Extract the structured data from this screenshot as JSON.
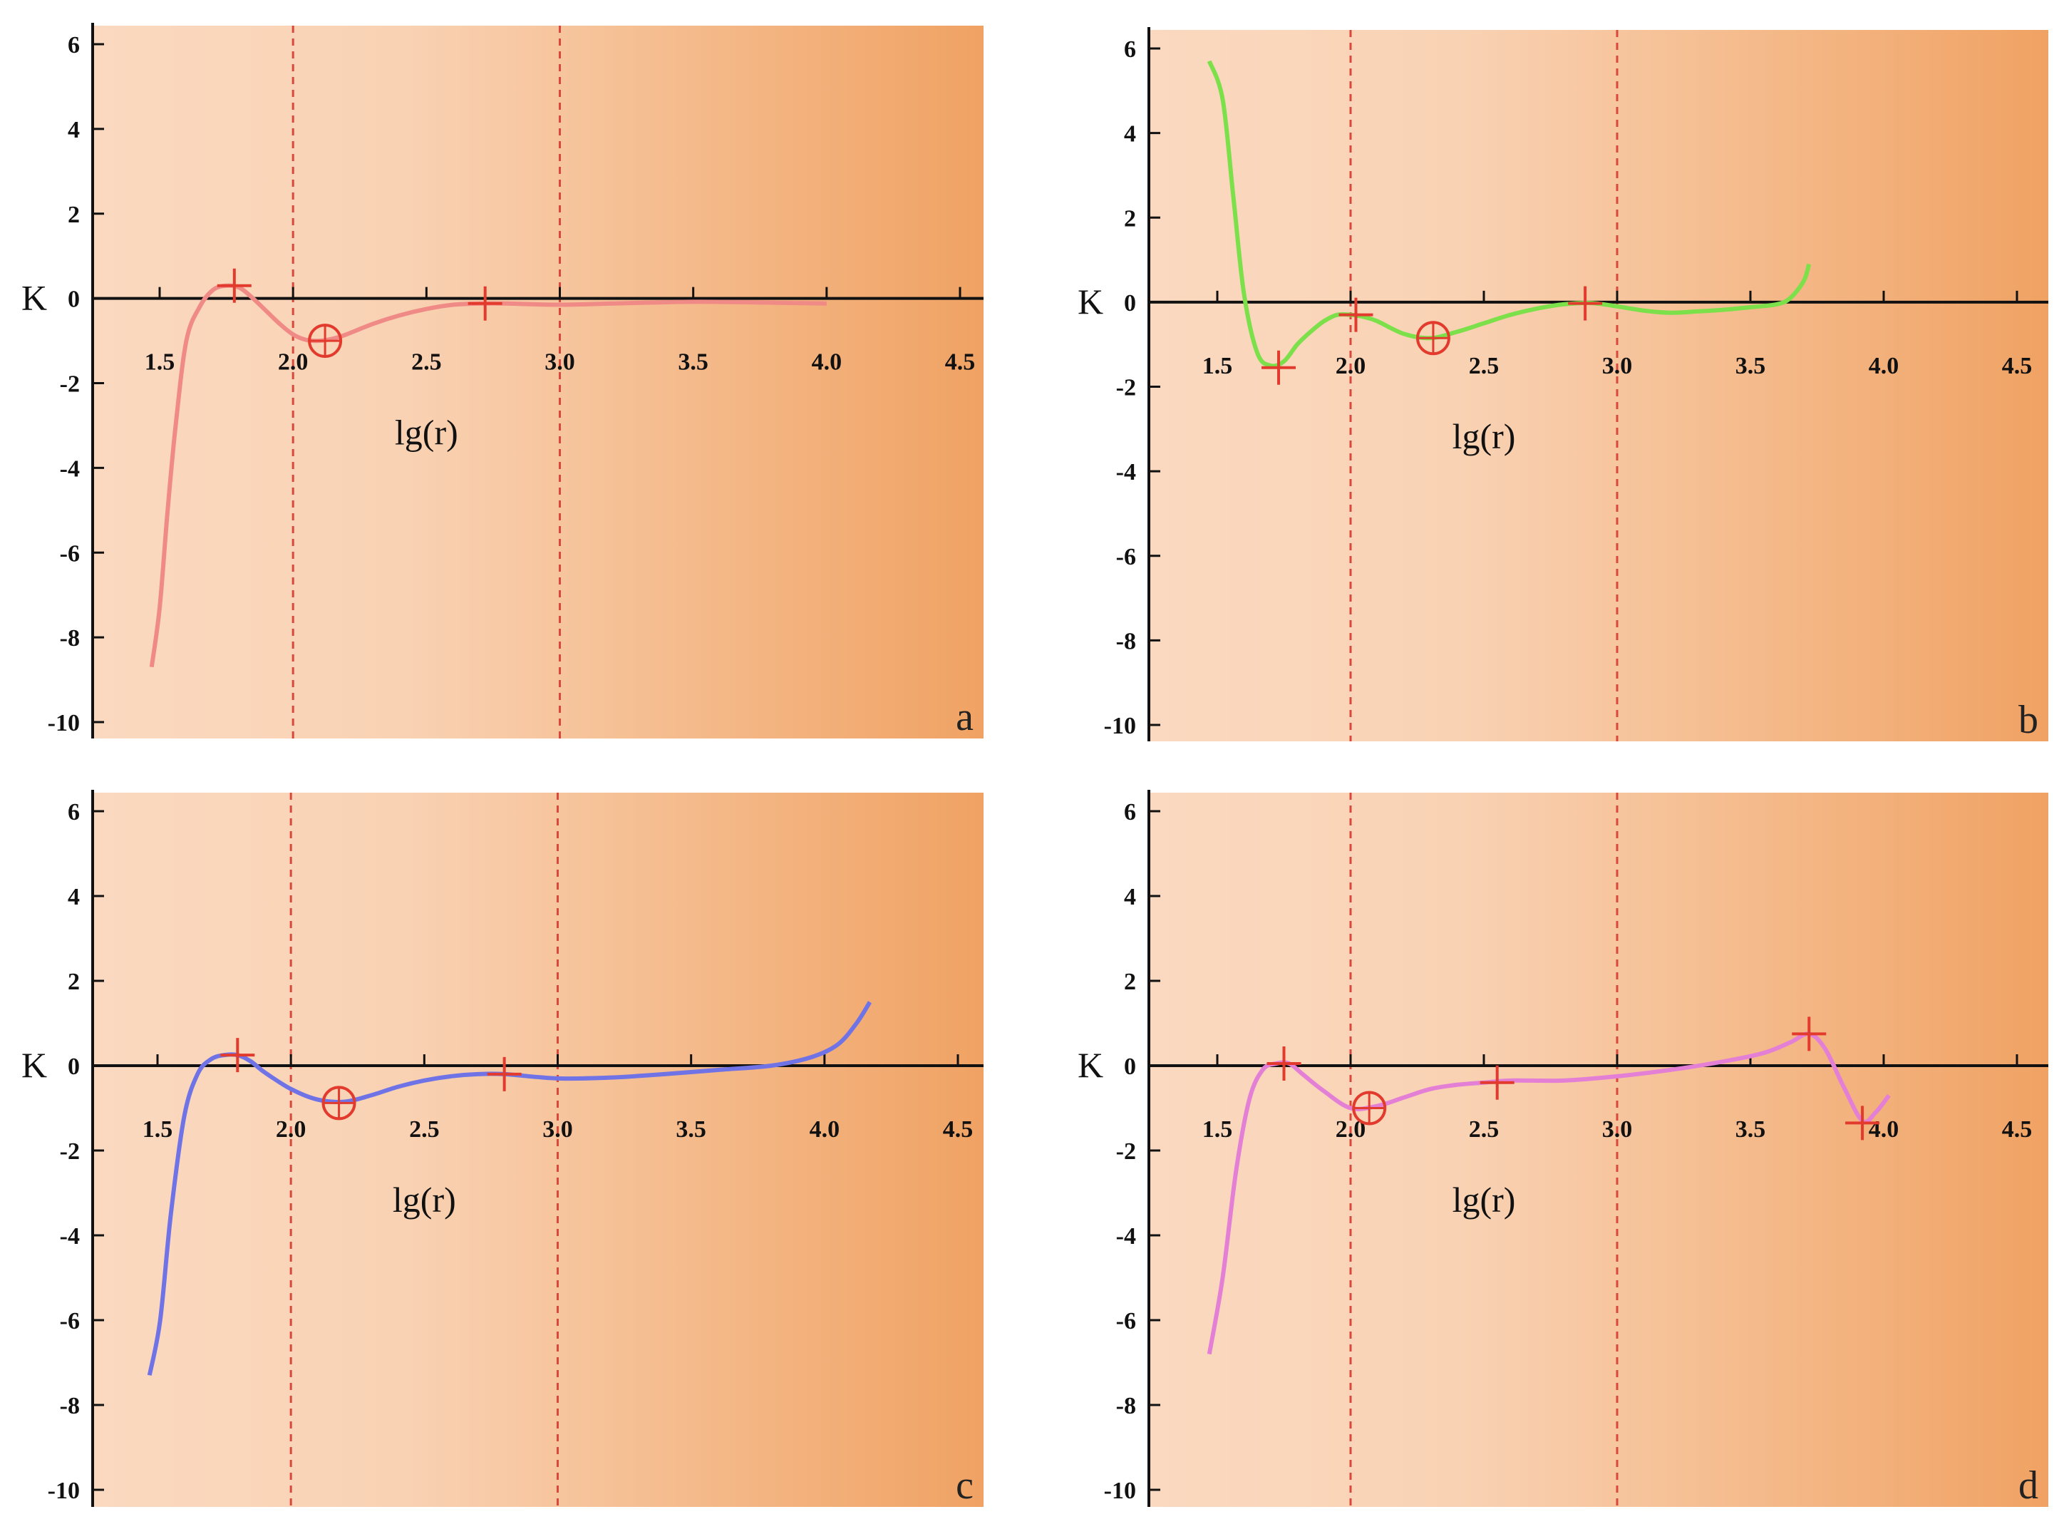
{
  "chart_data": [
    {
      "type": "line",
      "panel": "a",
      "xlabel": "lg(r)",
      "ylabel": "K",
      "xlim": [
        1.25,
        4.6
      ],
      "ylim": [
        -10.5,
        6.5
      ],
      "x_ticks": [
        "1.5",
        "2.0",
        "2.5",
        "3.0",
        "3.5",
        "4.0",
        "4.5"
      ],
      "y_ticks": [
        "6",
        "4",
        "2",
        "0",
        "-2",
        "-4",
        "-6",
        "-8",
        "-10"
      ],
      "y_tick_values": [
        6,
        4,
        2,
        0,
        -2,
        -4,
        -6,
        -8,
        -10
      ],
      "x_tick_values": [
        1.5,
        2.0,
        2.5,
        3.0,
        3.5,
        4.0,
        4.5
      ],
      "vlines": [
        2.0,
        3.0
      ],
      "line_color": "#f08a86",
      "series": {
        "x": [
          1.47,
          1.5,
          1.53,
          1.56,
          1.6,
          1.65,
          1.7,
          1.75,
          1.8,
          1.85,
          1.9,
          1.95,
          2.0,
          2.05,
          2.1,
          2.15,
          2.2,
          2.3,
          2.4,
          2.5,
          2.6,
          2.7,
          2.8,
          3.0,
          3.2,
          3.5,
          3.8,
          4.0
        ],
        "y": [
          -8.7,
          -7.3,
          -5.0,
          -3.0,
          -1.0,
          -0.2,
          0.2,
          0.3,
          0.25,
          0.0,
          -0.3,
          -0.6,
          -0.85,
          -0.98,
          -1.0,
          -0.95,
          -0.85,
          -0.6,
          -0.4,
          -0.25,
          -0.15,
          -0.12,
          -0.12,
          -0.15,
          -0.12,
          -0.08,
          -0.1,
          -0.12
        ]
      },
      "plus_markers": [
        [
          1.78,
          0.3
        ],
        [
          2.72,
          -0.12
        ]
      ],
      "circle_markers": [
        [
          2.12,
          -1.0
        ]
      ],
      "panel_letter": "a"
    },
    {
      "type": "line",
      "panel": "b",
      "xlabel": "lg(r)",
      "ylabel": "K",
      "xlim": [
        1.25,
        4.6
      ],
      "ylim": [
        -10.5,
        6.5
      ],
      "x_ticks": [
        "1.5",
        "2.0",
        "2.5",
        "3.0",
        "3.5",
        "4.0",
        "4.5"
      ],
      "y_ticks": [
        "6",
        "4",
        "2",
        "0",
        "-2",
        "-4",
        "-6",
        "-8",
        "-10"
      ],
      "y_tick_values": [
        6,
        4,
        2,
        0,
        -2,
        -4,
        -6,
        -8,
        -10
      ],
      "x_tick_values": [
        1.5,
        2.0,
        2.5,
        3.0,
        3.5,
        4.0,
        4.5
      ],
      "vlines": [
        2.0,
        3.0
      ],
      "line_color": "#7be04a",
      "series": {
        "x": [
          1.47,
          1.52,
          1.56,
          1.6,
          1.65,
          1.7,
          1.75,
          1.8,
          1.85,
          1.9,
          1.95,
          2.0,
          2.05,
          2.1,
          2.2,
          2.3,
          2.4,
          2.5,
          2.6,
          2.7,
          2.8,
          2.9,
          3.0,
          3.1,
          3.2,
          3.3,
          3.4,
          3.5,
          3.6,
          3.65,
          3.7,
          3.72
        ],
        "y": [
          5.7,
          4.8,
          2.5,
          0.2,
          -1.2,
          -1.5,
          -1.4,
          -1.0,
          -0.7,
          -0.45,
          -0.3,
          -0.3,
          -0.35,
          -0.45,
          -0.75,
          -0.85,
          -0.7,
          -0.5,
          -0.3,
          -0.15,
          -0.05,
          -0.02,
          -0.1,
          -0.2,
          -0.25,
          -0.22,
          -0.18,
          -0.12,
          -0.05,
          0.1,
          0.5,
          0.9
        ]
      },
      "plus_markers": [
        [
          1.73,
          -1.55
        ],
        [
          2.02,
          -0.3
        ],
        [
          2.88,
          -0.03
        ]
      ],
      "circle_markers": [
        [
          2.31,
          -0.85
        ]
      ],
      "panel_letter": "b"
    },
    {
      "type": "line",
      "panel": "c",
      "xlabel": "lg(r)",
      "ylabel": "K",
      "xlim": [
        1.25,
        4.6
      ],
      "ylim": [
        -10.5,
        6.5
      ],
      "x_ticks": [
        "1.5",
        "2.0",
        "2.5",
        "3.0",
        "3.5",
        "4.0",
        "4.5"
      ],
      "y_ticks": [
        "6",
        "4",
        "2",
        "0",
        "-2",
        "-4",
        "-6",
        "-8",
        "-10"
      ],
      "y_tick_values": [
        6,
        4,
        2,
        0,
        -2,
        -4,
        -6,
        -8,
        -10
      ],
      "x_tick_values": [
        1.5,
        2.0,
        2.5,
        3.0,
        3.5,
        4.0,
        4.5
      ],
      "vlines": [
        2.0,
        3.0
      ],
      "line_color": "#6f73e6",
      "series": {
        "x": [
          1.47,
          1.51,
          1.55,
          1.6,
          1.65,
          1.7,
          1.75,
          1.8,
          1.85,
          1.9,
          2.0,
          2.1,
          2.2,
          2.3,
          2.4,
          2.5,
          2.6,
          2.7,
          2.8,
          3.0,
          3.2,
          3.4,
          3.6,
          3.8,
          3.95,
          4.05,
          4.12,
          4.17
        ],
        "y": [
          -7.3,
          -6.0,
          -3.5,
          -1.2,
          -0.2,
          0.15,
          0.25,
          0.25,
          0.1,
          -0.15,
          -0.55,
          -0.8,
          -0.85,
          -0.7,
          -0.5,
          -0.35,
          -0.25,
          -0.2,
          -0.2,
          -0.3,
          -0.28,
          -0.2,
          -0.1,
          0.0,
          0.2,
          0.5,
          1.0,
          1.5
        ]
      },
      "plus_markers": [
        [
          1.8,
          0.25
        ],
        [
          2.8,
          -0.2
        ]
      ],
      "circle_markers": [
        [
          2.18,
          -0.88
        ]
      ],
      "panel_letter": "c"
    },
    {
      "type": "line",
      "panel": "d",
      "xlabel": "lg(r)",
      "ylabel": "K",
      "xlim": [
        1.25,
        4.6
      ],
      "ylim": [
        -10.5,
        6.5
      ],
      "x_ticks": [
        "1.5",
        "2.0",
        "2.5",
        "3.0",
        "3.5",
        "4.0",
        "4.5"
      ],
      "y_ticks": [
        "6",
        "4",
        "2",
        "0",
        "-2",
        "-4",
        "-6",
        "-8",
        "-10"
      ],
      "y_tick_values": [
        6,
        4,
        2,
        0,
        -2,
        -4,
        -6,
        -8,
        -10
      ],
      "x_tick_values": [
        1.5,
        2.0,
        2.5,
        3.0,
        3.5,
        4.0,
        4.5
      ],
      "vlines": [
        2.0,
        3.0
      ],
      "line_color": "#e47fd6",
      "series": {
        "x": [
          1.47,
          1.52,
          1.57,
          1.62,
          1.67,
          1.72,
          1.77,
          1.82,
          1.9,
          2.0,
          2.1,
          2.2,
          2.3,
          2.4,
          2.5,
          2.6,
          2.8,
          3.0,
          3.2,
          3.4,
          3.55,
          3.65,
          3.72,
          3.78,
          3.85,
          3.92,
          3.97,
          4.02
        ],
        "y": [
          -6.8,
          -5.0,
          -2.5,
          -0.8,
          -0.1,
          0.05,
          0.05,
          -0.2,
          -0.6,
          -1.0,
          -0.95,
          -0.75,
          -0.55,
          -0.45,
          -0.4,
          -0.35,
          -0.35,
          -0.25,
          -0.1,
          0.1,
          0.3,
          0.55,
          0.75,
          0.4,
          -0.5,
          -1.3,
          -1.1,
          -0.7
        ]
      },
      "plus_markers": [
        [
          1.75,
          0.05
        ],
        [
          2.55,
          -0.4
        ],
        [
          3.72,
          0.75
        ],
        [
          3.92,
          -1.35
        ]
      ],
      "circle_markers": [
        [
          2.07,
          -1.0
        ]
      ],
      "panel_letter": "d"
    }
  ],
  "colors": {
    "bg_light": "#fad9c0",
    "bg_dark": "#f0a263",
    "vline": "#d9483b",
    "marker": "#e23b2e",
    "axis": "#111111"
  }
}
